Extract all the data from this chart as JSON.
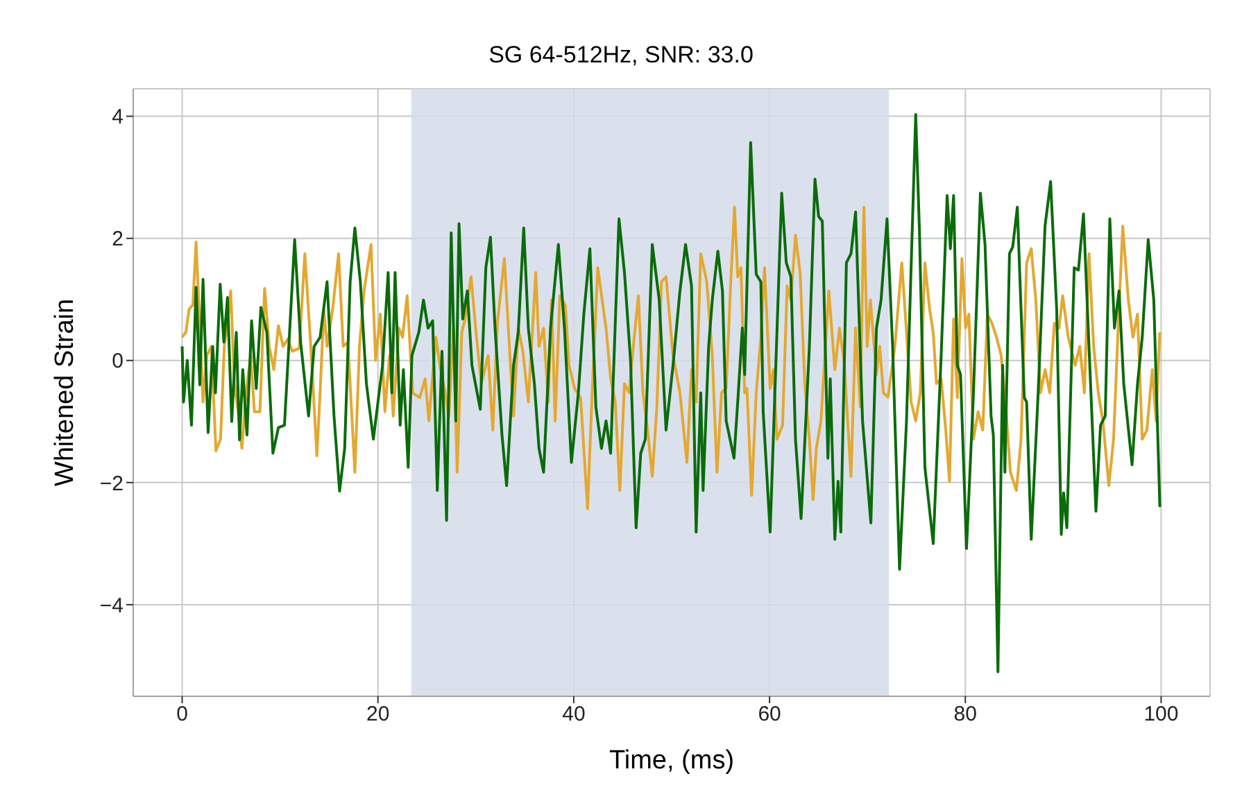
{
  "chart_data": {
    "type": "line",
    "title": "SG 64-512Hz, SNR: 33.0",
    "xlabel": "Time, (ms)",
    "ylabel": "Whitened Strain",
    "xlim": [
      -5,
      105
    ],
    "xticks": [
      0,
      20,
      40,
      60,
      80,
      100
    ],
    "ylim": [
      -5.5,
      4.45
    ],
    "yticks": [
      {
        "value": -4,
        "label": "−4"
      },
      {
        "value": -2,
        "label": "−2"
      },
      0,
      2,
      4
    ],
    "grid": true,
    "marker": "none",
    "line_style": "solid",
    "bands": [
      {
        "axis": "x",
        "from": 23.4,
        "to": 72.2,
        "color": "#d3dcea"
      }
    ],
    "series": [
      {
        "color": "#e3a832",
        "x": [
          0,
          0.38,
          0.71,
          1.09,
          1.42,
          1.8,
          2.13,
          2.51,
          2.98,
          3.45,
          3.92,
          4.3,
          4.63,
          4.96,
          5.34,
          5.72,
          6.1,
          6.52,
          7.0,
          7.38,
          7.94,
          8.42,
          8.89,
          9.36,
          9.83,
          10.31,
          10.78,
          11.25,
          11.96,
          12.53,
          13.14,
          13.76,
          14.09,
          14.47,
          14.8,
          15.37,
          15.98,
          16.45,
          16.93,
          17.64,
          18.11,
          18.58,
          19.29,
          19.76,
          20.24,
          20.71,
          21.18,
          21.56,
          22.13,
          22.51,
          22.98,
          23.55,
          24.26,
          24.82,
          25.2,
          25.92,
          26.39,
          26.86,
          27.24,
          27.71,
          28.09,
          28.56,
          28.9,
          29.51,
          29.98,
          30.55,
          31.26,
          31.73,
          32.2,
          32.91,
          33.48,
          33.85,
          34.33,
          34.8,
          35.36,
          36.12,
          36.45,
          36.92,
          37.4,
          37.73,
          38.1,
          38.58,
          39.14,
          39.52,
          40.09,
          40.7,
          41.41,
          41.88,
          42.45,
          43.3,
          43.77,
          44.24,
          44.71,
          45.18,
          45.66,
          46.13,
          46.6,
          47.07,
          47.55,
          48.02,
          48.49,
          48.96,
          49.43,
          50.14,
          50.85,
          51.56,
          52.03,
          52.5,
          52.97,
          53.59,
          54.15,
          54.63,
          55.1,
          55.57,
          56.04,
          56.42,
          56.75,
          57.08,
          57.46,
          57.69,
          58.17,
          58.64,
          59.11,
          59.49,
          60.06,
          60.39,
          60.76,
          61.33,
          61.8,
          62.18,
          62.65,
          63.12,
          63.6,
          64.07,
          64.45,
          64.78,
          65.25,
          66.05,
          66.67,
          67.14,
          67.61,
          68.32,
          68.79,
          69.26,
          69.64,
          69.97,
          70.3,
          70.92,
          71.25,
          71.63,
          72.1,
          72.8,
          73.51,
          73.99,
          74.46,
          74.93,
          75.4,
          75.87,
          76.35,
          76.72,
          77.05,
          77.53,
          78.0,
          78.38,
          78.8,
          79.18,
          79.65,
          80.03,
          80.36,
          80.83,
          81.3,
          81.78,
          82.25,
          82.72,
          83.19,
          83.66,
          84.13,
          84.6,
          85.22,
          85.69,
          86.26,
          86.73,
          87.2,
          87.68,
          88.15,
          88.62,
          89.09,
          89.57,
          89.94,
          90.51,
          91.22,
          91.69,
          92.16,
          92.63,
          93.11,
          93.58,
          94.05,
          94.66,
          95.14,
          95.61,
          96.08,
          96.65,
          97.12,
          97.59,
          98.07,
          98.54,
          99.1,
          99.48,
          99.86
        ],
        "values": [
          0.38,
          0.46,
          0.84,
          0.91,
          1.94,
          0.53,
          -0.68,
          0.08,
          0.23,
          -1.48,
          -1.29,
          0.23,
          0.61,
          1.14,
          -0.38,
          -0.84,
          -1.44,
          -0.53,
          0.08,
          -0.84,
          -0.84,
          1.18,
          0.23,
          -0.15,
          0.57,
          0.23,
          0.35,
          0.15,
          0.2,
          1.75,
          0.23,
          -1.56,
          -0.53,
          0.84,
          0.23,
          0.84,
          1.75,
          0.23,
          0.3,
          -1.83,
          0.23,
          1.14,
          1.9,
          0,
          0.76,
          -0.84,
          0.08,
          -0.91,
          0.53,
          0.38,
          1.06,
          -0.53,
          -0.61,
          -0.3,
          -0.99,
          0.38,
          -0.15,
          -0.53,
          -0.91,
          0.53,
          -1.83,
          0.46,
          0.68,
          1.37,
          0.53,
          -0.38,
          0.08,
          -1.14,
          0.61,
          1.67,
          0.08,
          -0.91,
          0.53,
          0.15,
          -0.68,
          1.44,
          0.23,
          0.53,
          -0.68,
          0.99,
          -0.99,
          1.06,
          0.91,
          -0.08,
          -0.46,
          -0.61,
          -2.43,
          -0.53,
          1.52,
          0.53,
          -0.3,
          -0.68,
          -2.13,
          -0.38,
          -0.53,
          0.3,
          1.06,
          -0.53,
          -1.14,
          -1.9,
          -0.76,
          1.29,
          1.37,
          0.08,
          -0.53,
          -1.67,
          -0.15,
          -0.68,
          1.75,
          1.29,
          0.08,
          -1.83,
          -0.53,
          -0.45,
          1.29,
          2.51,
          1.37,
          1.52,
          -0.53,
          -0.46,
          -2.21,
          -0.53,
          0.38,
          1.52,
          -0.46,
          -0.15,
          -1.29,
          -1.06,
          1.22,
          0.99,
          2.05,
          1.44,
          -0.38,
          -1.29,
          -2.28,
          -1.44,
          -0.99,
          1.14,
          -0.15,
          0.53,
          0,
          -1.9,
          0.53,
          -0.76,
          2.51,
          0.23,
          0.99,
          -0.23,
          0.23,
          -0.53,
          -0.6,
          0.23,
          1.6,
          0.46,
          -0.68,
          -0.99,
          -0.53,
          1.6,
          0.84,
          0.46,
          -0.38,
          -0.3,
          -1.14,
          -1.98,
          0.68,
          -0.61,
          1.67,
          0.53,
          0.76,
          -1.29,
          -0.84,
          -1.14,
          0.76,
          0.61,
          0.38,
          0.08,
          -0.76,
          -1.83,
          -2.13,
          -1.29,
          1.6,
          1.83,
          0.99,
          -0.53,
          -0.15,
          -0.53,
          0.61,
          0.53,
          1.06,
          0.38,
          -0.08,
          0.23,
          -0.53,
          1.75,
          0.23,
          -0.53,
          -0.99,
          -2.05,
          -1.29,
          0.53,
          2.2,
          0.99,
          0.38,
          0.76,
          -1.29,
          -1.14,
          -0.15,
          -0.99,
          0.46
        ]
      },
      {
        "color": "#0b6b0b",
        "x": [
          0,
          0.14,
          0.52,
          0.95,
          1.42,
          1.8,
          2.13,
          2.65,
          3.12,
          3.4,
          3.88,
          4.26,
          4.63,
          5.06,
          5.53,
          5.86,
          6.19,
          6.62,
          7.09,
          7.57,
          8.04,
          8.65,
          9.27,
          9.83,
          10.45,
          11.49,
          12.1,
          12.91,
          13.48,
          14.09,
          14.8,
          15.51,
          16.08,
          16.6,
          17.16,
          17.64,
          18.2,
          18.82,
          19.53,
          20.47,
          21.04,
          21.42,
          21.75,
          22.27,
          22.6,
          23.09,
          23.47,
          24.17,
          24.65,
          25.12,
          25.59,
          26.06,
          26.54,
          27.01,
          27.48,
          27.95,
          28.28,
          28.66,
          29.13,
          29.6,
          30.45,
          31.02,
          31.49,
          31.96,
          32.67,
          33.14,
          33.85,
          34.33,
          34.89,
          35.36,
          35.98,
          36.45,
          36.92,
          37.63,
          38.43,
          39.05,
          39.76,
          40.47,
          41.03,
          41.65,
          42.26,
          42.83,
          43.3,
          43.77,
          44.62,
          45.18,
          45.8,
          46.37,
          46.84,
          47.31,
          48.02,
          48.73,
          49.43,
          50.14,
          50.85,
          51.42,
          52.03,
          52.5,
          52.97,
          53.21,
          53.78,
          54.15,
          54.72,
          55.19,
          55.57,
          56.37,
          56.75,
          57.22,
          57.46,
          58.07,
          58.64,
          59.11,
          59.35,
          60.06,
          61.24,
          61.71,
          62.18,
          62.65,
          63.22,
          64.07,
          64.64,
          65.01,
          65.39,
          65.96,
          66.2,
          66.67,
          67.0,
          67.28,
          67.85,
          68.32,
          68.79,
          69.5,
          70.35,
          70.92,
          71.39,
          72.0,
          72.57,
          73.28,
          73.99,
          74.46,
          74.93,
          75.31,
          75.87,
          76.72,
          77.53,
          78.14,
          78.47,
          78.8,
          79.18,
          79.51,
          80.12,
          80.83,
          81.54,
          82.01,
          82.63,
          82.86,
          83.33,
          83.81,
          84.04,
          84.51,
          84.84,
          85.31,
          86.02,
          86.26,
          86.73,
          87.44,
          88.14,
          88.71,
          89.33,
          89.8,
          90.04,
          90.37,
          91.12,
          91.55,
          92.07,
          92.63,
          93.34,
          93.81,
          94.29,
          94.76,
          95.23,
          95.7,
          96.18,
          97.03,
          97.59,
          98.07,
          98.68,
          99.25,
          99.87
        ],
        "values": [
          0.23,
          -0.68,
          0,
          -1.06,
          1.2,
          -0.4,
          1.33,
          -1.18,
          0.23,
          -0.53,
          1.25,
          0.3,
          1.03,
          -1,
          0.46,
          -1.3,
          -0.15,
          -1.22,
          0.65,
          -0.46,
          0.87,
          0.46,
          -1.52,
          -1.1,
          -1.06,
          1.98,
          0.3,
          -0.91,
          0.23,
          0.38,
          1.29,
          -0.91,
          -2.14,
          -1.44,
          1.29,
          2.17,
          1.29,
          -0.38,
          -1.29,
          -0.08,
          1.44,
          -0.53,
          1.44,
          -1.06,
          -0.15,
          -1.75,
          0.08,
          0.46,
          0.99,
          0.53,
          0.65,
          -2.13,
          0.15,
          -2.62,
          2.09,
          -0.99,
          2.24,
          0.68,
          1.14,
          -0.08,
          -0.8,
          1.52,
          2.02,
          0.53,
          -1.22,
          -2.05,
          -0.08,
          0.46,
          2.17,
          0.53,
          -0.38,
          -1.44,
          -1.83,
          0.53,
          1.9,
          0.53,
          -1.67,
          -0.53,
          0.76,
          1.83,
          -0.76,
          -1.44,
          -0.99,
          -1.52,
          2.32,
          1.44,
          0,
          -2.74,
          -1.52,
          -1.29,
          1.9,
          0.99,
          -1.14,
          -0.08,
          1.14,
          1.9,
          1.22,
          -2.81,
          -0.53,
          -2.13,
          0.23,
          0.99,
          1.79,
          1.14,
          -0.99,
          -1.6,
          -0.68,
          0.53,
          -0.23,
          3.57,
          1.41,
          1.29,
          -0.84,
          -2.81,
          2.74,
          1.6,
          1.37,
          -1.29,
          -2.59,
          0.23,
          2.97,
          2.36,
          2.28,
          -1.6,
          -0.3,
          -2.93,
          -1.98,
          -2.81,
          1.6,
          1.75,
          2.43,
          -0.99,
          -2.66,
          0.53,
          0.99,
          2.32,
          0.23,
          -3.42,
          -0.99,
          1.52,
          4.03,
          2.13,
          -1.75,
          -3.0,
          0.08,
          2.7,
          1.83,
          2.7,
          -0.08,
          -0.23,
          -3.08,
          -0.53,
          2.74,
          1.9,
          -0.91,
          -1.22,
          -5.1,
          -0.08,
          -1.83,
          1.75,
          1.86,
          2.51,
          -0.61,
          -0.68,
          -2.93,
          -0.53,
          2.2,
          2.93,
          0.84,
          -2.85,
          -2.17,
          -2.74,
          1.52,
          1.48,
          2.4,
          0.23,
          -2.47,
          -1.06,
          -0.91,
          2.32,
          0.53,
          1.14,
          -0.38,
          -1.71,
          -0.38,
          0.38,
          1.98,
          0.99,
          -2.4
        ]
      }
    ]
  }
}
